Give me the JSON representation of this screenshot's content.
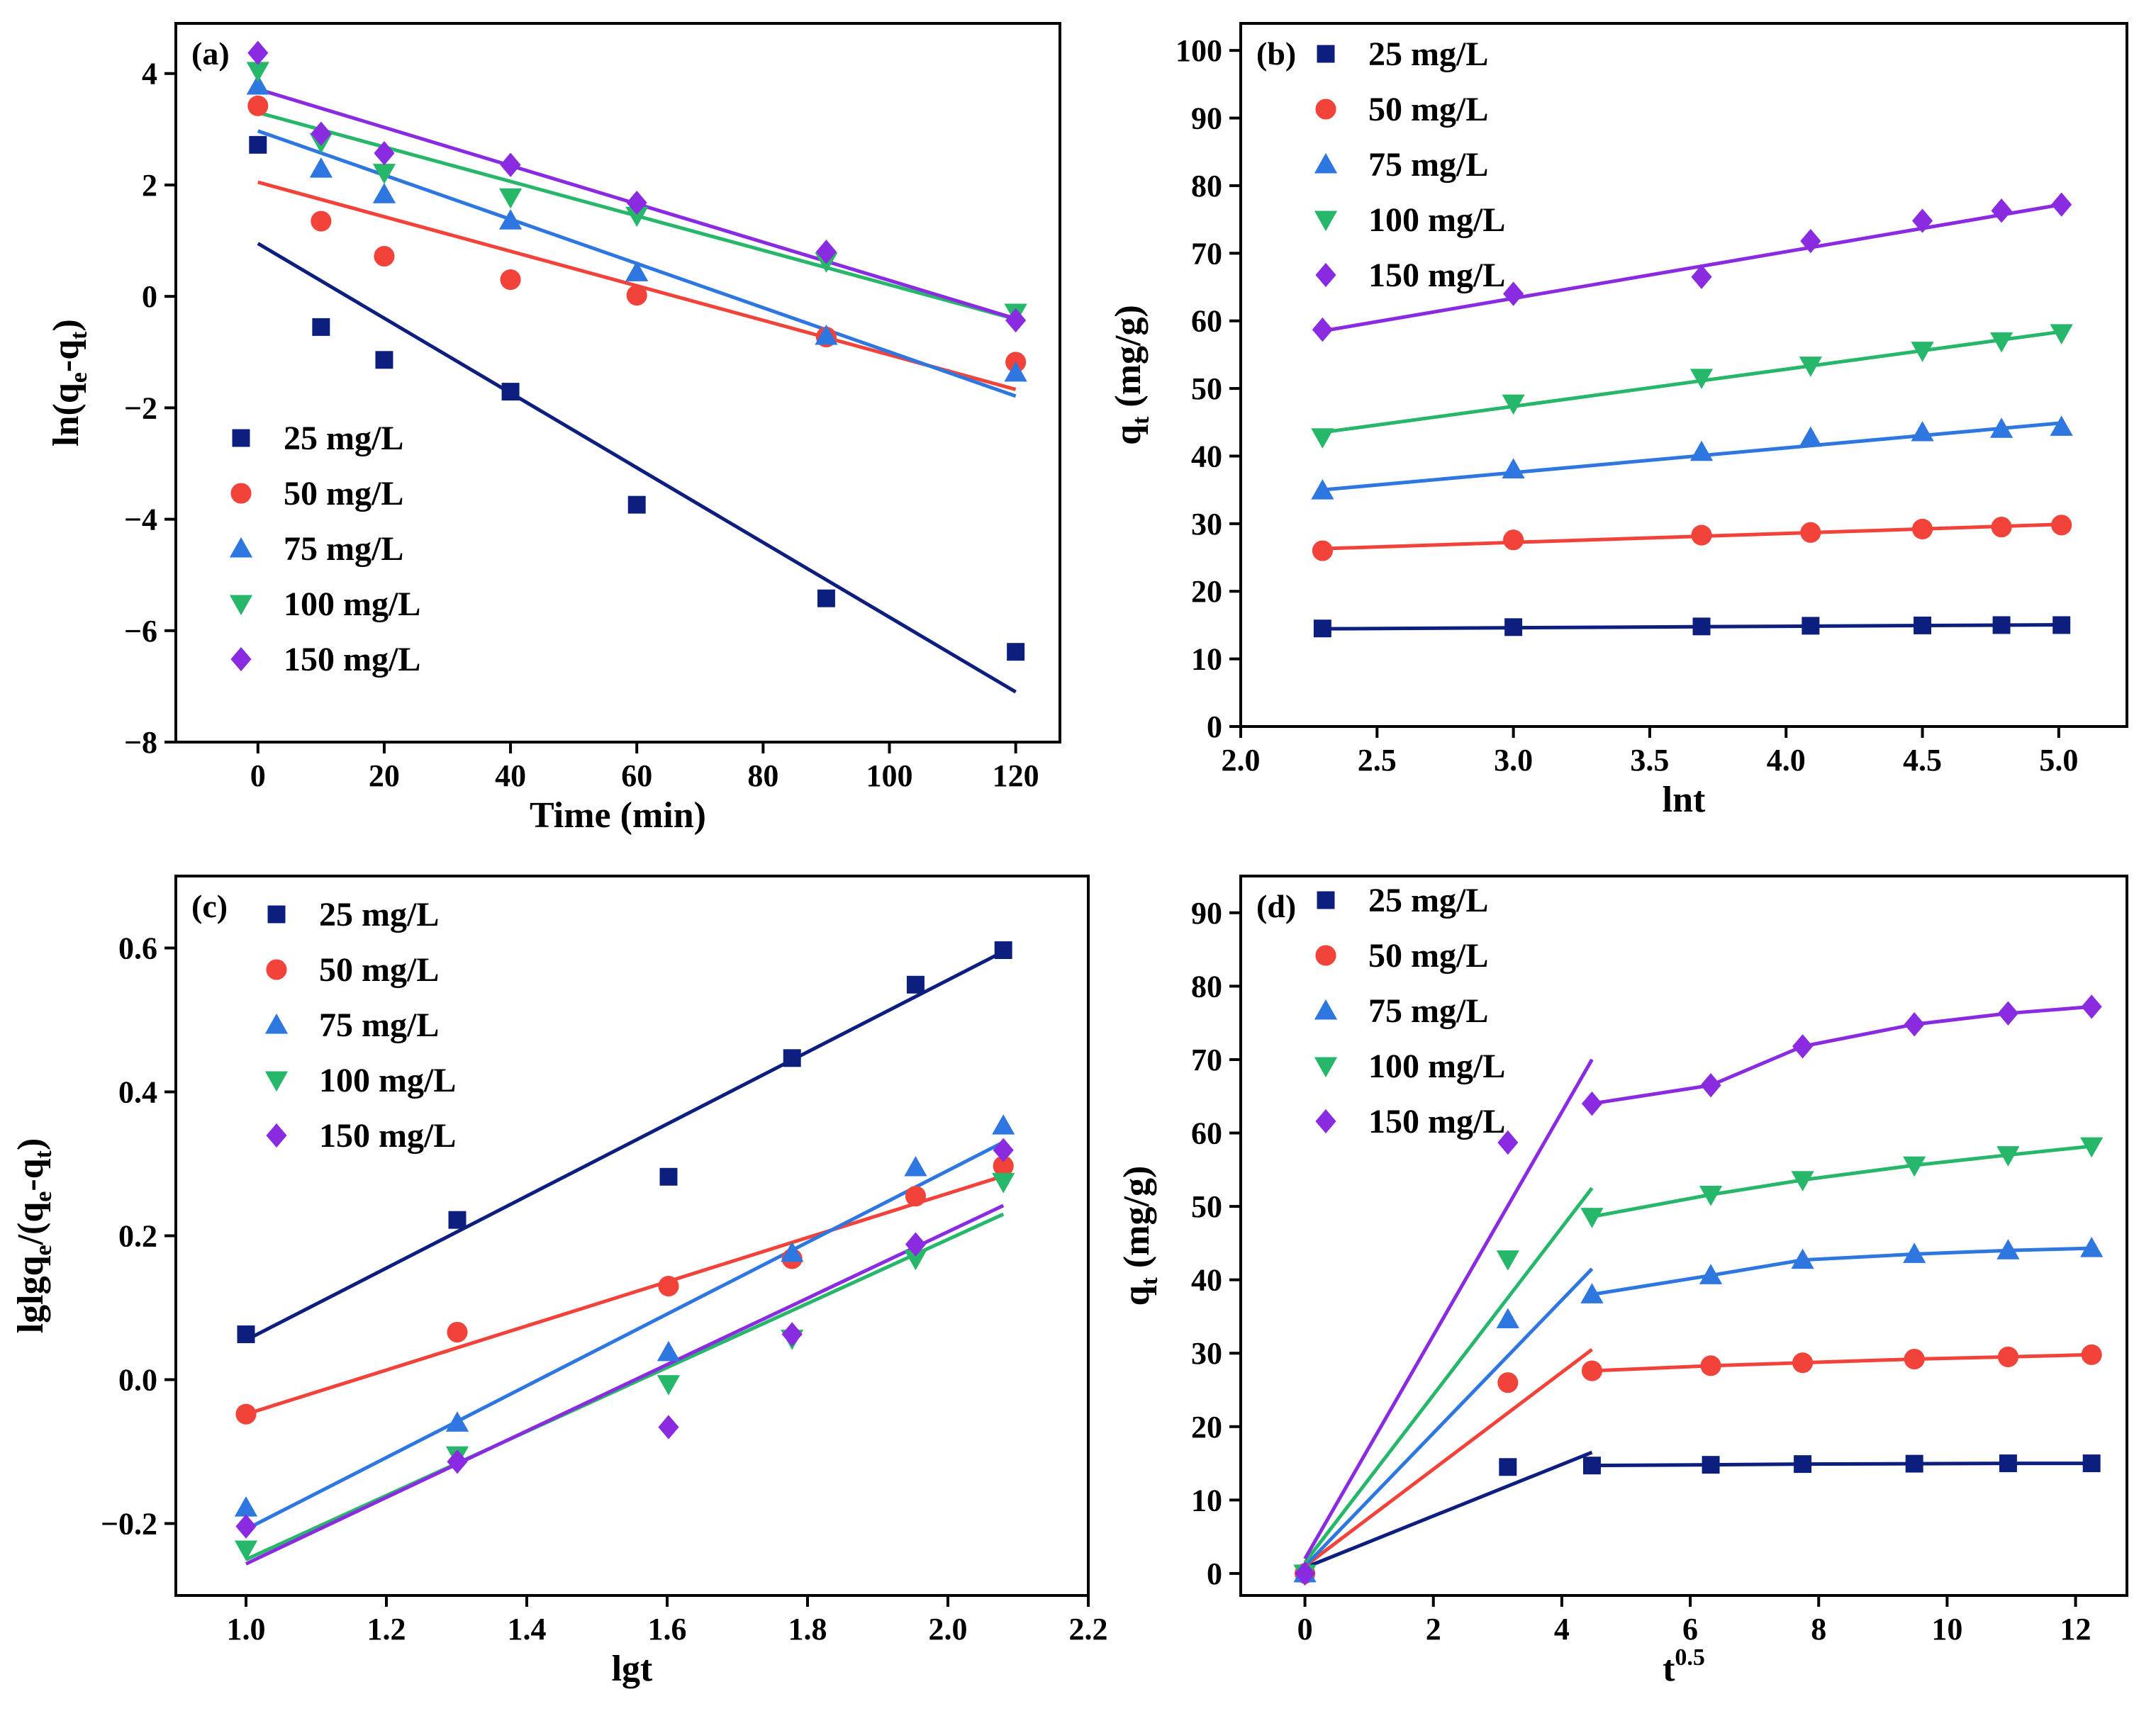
{
  "chart_data": [
    {
      "id": "a",
      "type": "scatter",
      "panel_label": "(a)",
      "title": "",
      "xlabel": "Time (min)",
      "ylabel": {
        "main": "ln(q",
        "sub1": "e",
        "mid": "-q",
        "sub2": "t",
        "tail": ")"
      },
      "xlim": [
        -13,
        127
      ],
      "ylim": [
        -8,
        4.9
      ],
      "xticks": [
        0,
        20,
        40,
        60,
        80,
        100,
        120
      ],
      "yticks": [
        -8,
        -6,
        -4,
        -2,
        0,
        2,
        4
      ],
      "xtick_labels": [
        "0",
        "20",
        "40",
        "60",
        "80",
        "100",
        "120"
      ],
      "ytick_labels": [
        "−8",
        "−6",
        "−4",
        "−2",
        "0",
        "2",
        "4"
      ],
      "legend_position": "bottom-left",
      "series": [
        {
          "name": "25 mg/L",
          "color": "#0c1e7e",
          "marker": "square",
          "x": [
            0,
            10,
            20,
            40,
            60,
            90,
            120
          ],
          "y": [
            2.72,
            -0.55,
            -1.14,
            -1.71,
            -3.74,
            -5.42,
            -6.38
          ],
          "fits": [
            {
              "x": [
                0,
                120
              ],
              "y": [
                0.95,
                -7.1
              ]
            }
          ]
        },
        {
          "name": "50 mg/L",
          "color": "#f2433b",
          "marker": "circle",
          "x": [
            0,
            10,
            20,
            40,
            60,
            90,
            120
          ],
          "y": [
            3.42,
            1.35,
            0.72,
            0.3,
            0.02,
            -0.73,
            -1.18
          ],
          "fits": [
            {
              "x": [
                0,
                120
              ],
              "y": [
                2.05,
                -1.67
              ]
            }
          ]
        },
        {
          "name": "75 mg/L",
          "color": "#2f77e0",
          "marker": "triangle-up",
          "x": [
            0,
            10,
            20,
            40,
            60,
            90,
            120
          ],
          "y": [
            3.78,
            2.29,
            1.83,
            1.36,
            0.43,
            -0.71,
            -1.37
          ],
          "fits": [
            {
              "x": [
                0,
                120
              ],
              "y": [
                2.97,
                -1.79
              ]
            }
          ]
        },
        {
          "name": "100 mg/L",
          "color": "#27b76a",
          "marker": "triangle-down",
          "x": [
            0,
            10,
            20,
            40,
            60,
            90,
            120
          ],
          "y": [
            4.05,
            2.77,
            2.22,
            1.78,
            1.45,
            0.63,
            -0.29
          ],
          "fits": [
            {
              "x": [
                0,
                120
              ],
              "y": [
                3.3,
                -0.41
              ]
            }
          ]
        },
        {
          "name": "150 mg/L",
          "color": "#8a2be2",
          "marker": "diamond",
          "x": [
            0,
            10,
            20,
            40,
            60,
            90,
            120
          ],
          "y": [
            4.37,
            2.92,
            2.57,
            2.36,
            1.68,
            0.8,
            -0.43
          ],
          "fits": [
            {
              "x": [
                0,
                120
              ],
              "y": [
                3.72,
                -0.4
              ]
            }
          ]
        }
      ]
    },
    {
      "id": "b",
      "type": "scatter",
      "panel_label": "(b)",
      "title": "",
      "xlabel": "lnt",
      "ylabel": {
        "main": "q",
        "sub1": "t",
        "tail": " (mg/g)"
      },
      "xlim": [
        2.0,
        5.25
      ],
      "ylim": [
        0,
        104
      ],
      "xticks": [
        2.0,
        2.5,
        3.0,
        3.5,
        4.0,
        4.5,
        5.0
      ],
      "yticks": [
        0,
        10,
        20,
        30,
        40,
        50,
        60,
        70,
        80,
        90,
        100
      ],
      "xtick_labels": [
        "2.0",
        "2.5",
        "3.0",
        "3.5",
        "4.0",
        "4.5",
        "5.0"
      ],
      "ytick_labels": [
        "0",
        "10",
        "20",
        "30",
        "40",
        "50",
        "60",
        "70",
        "80",
        "90",
        "100"
      ],
      "legend_position": "top-left",
      "series": [
        {
          "name": "25 mg/L",
          "color": "#0c1e7e",
          "marker": "square",
          "x": [
            2.3,
            3.0,
            3.69,
            4.09,
            4.5,
            4.79,
            5.01
          ],
          "y": [
            14.5,
            14.7,
            14.8,
            14.9,
            14.95,
            15.0,
            15.0
          ],
          "fits": [
            {
              "x": [
                2.3,
                5.01
              ],
              "y": [
                14.45,
                15.05
              ]
            }
          ]
        },
        {
          "name": "50 mg/L",
          "color": "#f2433b",
          "marker": "circle",
          "x": [
            2.3,
            3.0,
            3.69,
            4.09,
            4.5,
            4.79,
            5.01
          ],
          "y": [
            26.0,
            27.6,
            28.3,
            28.7,
            29.2,
            29.5,
            29.8
          ],
          "fits": [
            {
              "x": [
                2.3,
                5.01
              ],
              "y": [
                26.3,
                29.9
              ]
            }
          ]
        },
        {
          "name": "75 mg/L",
          "color": "#2f77e0",
          "marker": "triangle-up",
          "x": [
            2.3,
            3.0,
            3.69,
            4.09,
            4.5,
            4.79,
            5.01
          ],
          "y": [
            34.9,
            38.0,
            40.6,
            42.7,
            43.5,
            44.0,
            44.3
          ],
          "fits": [
            {
              "x": [
                2.3,
                5.01
              ],
              "y": [
                35.0,
                44.9
              ]
            }
          ]
        },
        {
          "name": "100 mg/L",
          "color": "#27b76a",
          "marker": "triangle-down",
          "x": [
            2.3,
            3.0,
            3.69,
            4.09,
            4.5,
            4.79,
            5.01
          ],
          "y": [
            42.8,
            47.8,
            51.6,
            53.4,
            55.6,
            57.0,
            58.2
          ],
          "fits": [
            {
              "x": [
                2.3,
                5.01
              ],
              "y": [
                43.5,
                58.4
              ]
            }
          ]
        },
        {
          "name": "150 mg/L",
          "color": "#8a2be2",
          "marker": "diamond",
          "x": [
            2.3,
            3.0,
            3.69,
            4.09,
            4.5,
            4.79,
            5.01
          ],
          "y": [
            58.7,
            64.0,
            66.5,
            71.8,
            74.8,
            76.3,
            77.2
          ],
          "fits": [
            {
              "x": [
                2.3,
                5.01
              ],
              "y": [
                58.5,
                77.2
              ]
            }
          ]
        }
      ]
    },
    {
      "id": "c",
      "type": "scatter",
      "panel_label": "(c)",
      "title": "",
      "xlabel": "lgt",
      "ylabel": {
        "main": "lglgq",
        "sub1": "e",
        "mid": "/(q",
        "sub2": "e",
        "mid2": "-q",
        "sub3": "t",
        "tail": ")"
      },
      "xlim": [
        0.9,
        2.2
      ],
      "ylim": [
        -0.3,
        0.7
      ],
      "xticks": [
        1.0,
        1.2,
        1.4,
        1.6,
        1.8,
        2.0,
        2.2
      ],
      "yticks": [
        -0.2,
        0.0,
        0.2,
        0.4,
        0.6
      ],
      "xtick_labels": [
        "1.0",
        "1.2",
        "1.4",
        "1.6",
        "1.8",
        "2.0",
        "2.2"
      ],
      "ytick_labels": [
        "−0.2",
        "0.0",
        "0.2",
        "0.4",
        "0.6"
      ],
      "legend_position": "top-left",
      "series": [
        {
          "name": "25 mg/L",
          "color": "#0c1e7e",
          "marker": "square",
          "x": [
            1.0,
            1.301,
            1.602,
            1.778,
            1.954,
            2.079
          ],
          "y": [
            0.063,
            0.222,
            0.282,
            0.447,
            0.549,
            0.597
          ],
          "fits": [
            {
              "x": [
                1.0,
                2.079
              ],
              "y": [
                0.055,
                0.595
              ]
            }
          ]
        },
        {
          "name": "50 mg/L",
          "color": "#f2433b",
          "marker": "circle",
          "x": [
            1.0,
            1.301,
            1.602,
            1.778,
            1.954,
            2.079
          ],
          "y": [
            -0.048,
            0.066,
            0.13,
            0.168,
            0.255,
            0.297
          ],
          "fits": [
            {
              "x": [
                1.0,
                2.079
              ],
              "y": [
                -0.048,
                0.283
              ]
            }
          ]
        },
        {
          "name": "75 mg/L",
          "color": "#2f77e0",
          "marker": "triangle-up",
          "x": [
            1.0,
            1.301,
            1.602,
            1.778,
            1.954,
            2.079
          ],
          "y": [
            -0.178,
            -0.06,
            0.038,
            0.176,
            0.295,
            0.353
          ],
          "fits": [
            {
              "x": [
                1.0,
                2.079
              ],
              "y": [
                -0.208,
                0.33
              ]
            }
          ]
        },
        {
          "name": "100 mg/L",
          "color": "#27b76a",
          "marker": "triangle-down",
          "x": [
            1.0,
            1.301,
            1.602,
            1.778,
            1.954,
            2.079
          ],
          "y": [
            -0.236,
            -0.105,
            -0.006,
            0.057,
            0.168,
            0.275
          ],
          "fits": [
            {
              "x": [
                1.0,
                2.079
              ],
              "y": [
                -0.25,
                0.23
              ]
            }
          ]
        },
        {
          "name": "150 mg/L",
          "color": "#8a2be2",
          "marker": "diamond",
          "x": [
            1.0,
            1.301,
            1.602,
            1.778,
            1.954,
            2.079
          ],
          "y": [
            -0.204,
            -0.114,
            -0.066,
            0.063,
            0.188,
            0.319
          ],
          "fits": [
            {
              "x": [
                1.0,
                2.079
              ],
              "y": [
                -0.256,
                0.242
              ]
            }
          ]
        }
      ]
    },
    {
      "id": "d",
      "type": "scatter",
      "panel_label": "(d)",
      "title": "",
      "xlabel": {
        "main": "t",
        "sup": "0.5"
      },
      "ylabel": {
        "main": "q",
        "sub1": "t",
        "tail": " (mg/g)"
      },
      "xlim": [
        -1,
        12.8
      ],
      "ylim": [
        -3,
        95
      ],
      "xticks": [
        0,
        2,
        4,
        6,
        8,
        10,
        12
      ],
      "yticks": [
        0,
        10,
        20,
        30,
        40,
        50,
        60,
        70,
        80,
        90
      ],
      "xtick_labels": [
        "0",
        "2",
        "4",
        "6",
        "8",
        "10",
        "12"
      ],
      "ytick_labels": [
        "0",
        "10",
        "20",
        "30",
        "40",
        "50",
        "60",
        "70",
        "80",
        "90"
      ],
      "legend_position": "top-left",
      "series": [
        {
          "name": "25 mg/L",
          "color": "#0c1e7e",
          "marker": "square",
          "x": [
            0,
            3.16,
            4.47,
            6.32,
            7.75,
            9.49,
            10.95,
            12.25
          ],
          "y": [
            0,
            14.5,
            14.7,
            14.8,
            14.9,
            14.95,
            15.0,
            15.0
          ],
          "fits": [
            {
              "x": [
                0,
                4.47
              ],
              "y": [
                0.8,
                16.5
              ]
            },
            {
              "x": [
                4.47,
                6.32,
                7.75,
                9.49,
                10.95,
                12.25
              ],
              "y": [
                14.7,
                14.8,
                14.9,
                14.95,
                15.0,
                15.0
              ]
            }
          ]
        },
        {
          "name": "50 mg/L",
          "color": "#f2433b",
          "marker": "circle",
          "x": [
            0,
            3.16,
            4.47,
            6.32,
            7.75,
            9.49,
            10.95,
            12.25
          ],
          "y": [
            0,
            26.0,
            27.6,
            28.3,
            28.7,
            29.2,
            29.5,
            29.8
          ],
          "fits": [
            {
              "x": [
                0,
                4.47
              ],
              "y": [
                1.0,
                30.5
              ]
            },
            {
              "x": [
                4.47,
                6.32,
                7.75,
                9.49,
                10.95,
                12.25
              ],
              "y": [
                27.6,
                28.3,
                28.7,
                29.2,
                29.5,
                29.8
              ]
            }
          ]
        },
        {
          "name": "75 mg/L",
          "color": "#2f77e0",
          "marker": "triangle-up",
          "x": [
            0,
            3.16,
            4.47,
            6.32,
            7.75,
            9.49,
            10.95,
            12.25
          ],
          "y": [
            0,
            34.6,
            38.0,
            40.6,
            42.7,
            43.5,
            44.0,
            44.3
          ],
          "fits": [
            {
              "x": [
                0,
                4.47
              ],
              "y": [
                1.0,
                41.5
              ]
            },
            {
              "x": [
                4.47,
                6.32,
                7.75,
                9.49,
                10.95,
                12.25
              ],
              "y": [
                38.0,
                40.6,
                42.7,
                43.5,
                44.0,
                44.3
              ]
            }
          ]
        },
        {
          "name": "100 mg/L",
          "color": "#27b76a",
          "marker": "triangle-down",
          "x": [
            0,
            3.16,
            4.47,
            6.32,
            7.75,
            9.49,
            10.95,
            12.25
          ],
          "y": [
            0,
            42.8,
            48.6,
            51.6,
            53.6,
            55.6,
            57.0,
            58.2
          ],
          "fits": [
            {
              "x": [
                0,
                4.47
              ],
              "y": [
                1.5,
                52.5
              ]
            },
            {
              "x": [
                4.47,
                6.32,
                7.75,
                9.49,
                10.95,
                12.25
              ],
              "y": [
                48.6,
                51.6,
                53.6,
                55.6,
                57.0,
                58.2
              ]
            }
          ]
        },
        {
          "name": "150 mg/L",
          "color": "#8a2be2",
          "marker": "diamond",
          "x": [
            0,
            3.16,
            4.47,
            6.32,
            7.75,
            9.49,
            10.95,
            12.25
          ],
          "y": [
            0,
            58.7,
            64.0,
            66.5,
            71.8,
            74.8,
            76.3,
            77.2
          ],
          "fits": [
            {
              "x": [
                0,
                4.47
              ],
              "y": [
                2.0,
                70.0
              ]
            },
            {
              "x": [
                4.47,
                6.32,
                7.75,
                9.49,
                10.95,
                12.25
              ],
              "y": [
                64.0,
                66.5,
                71.8,
                74.8,
                76.3,
                77.2
              ]
            }
          ]
        }
      ]
    }
  ]
}
